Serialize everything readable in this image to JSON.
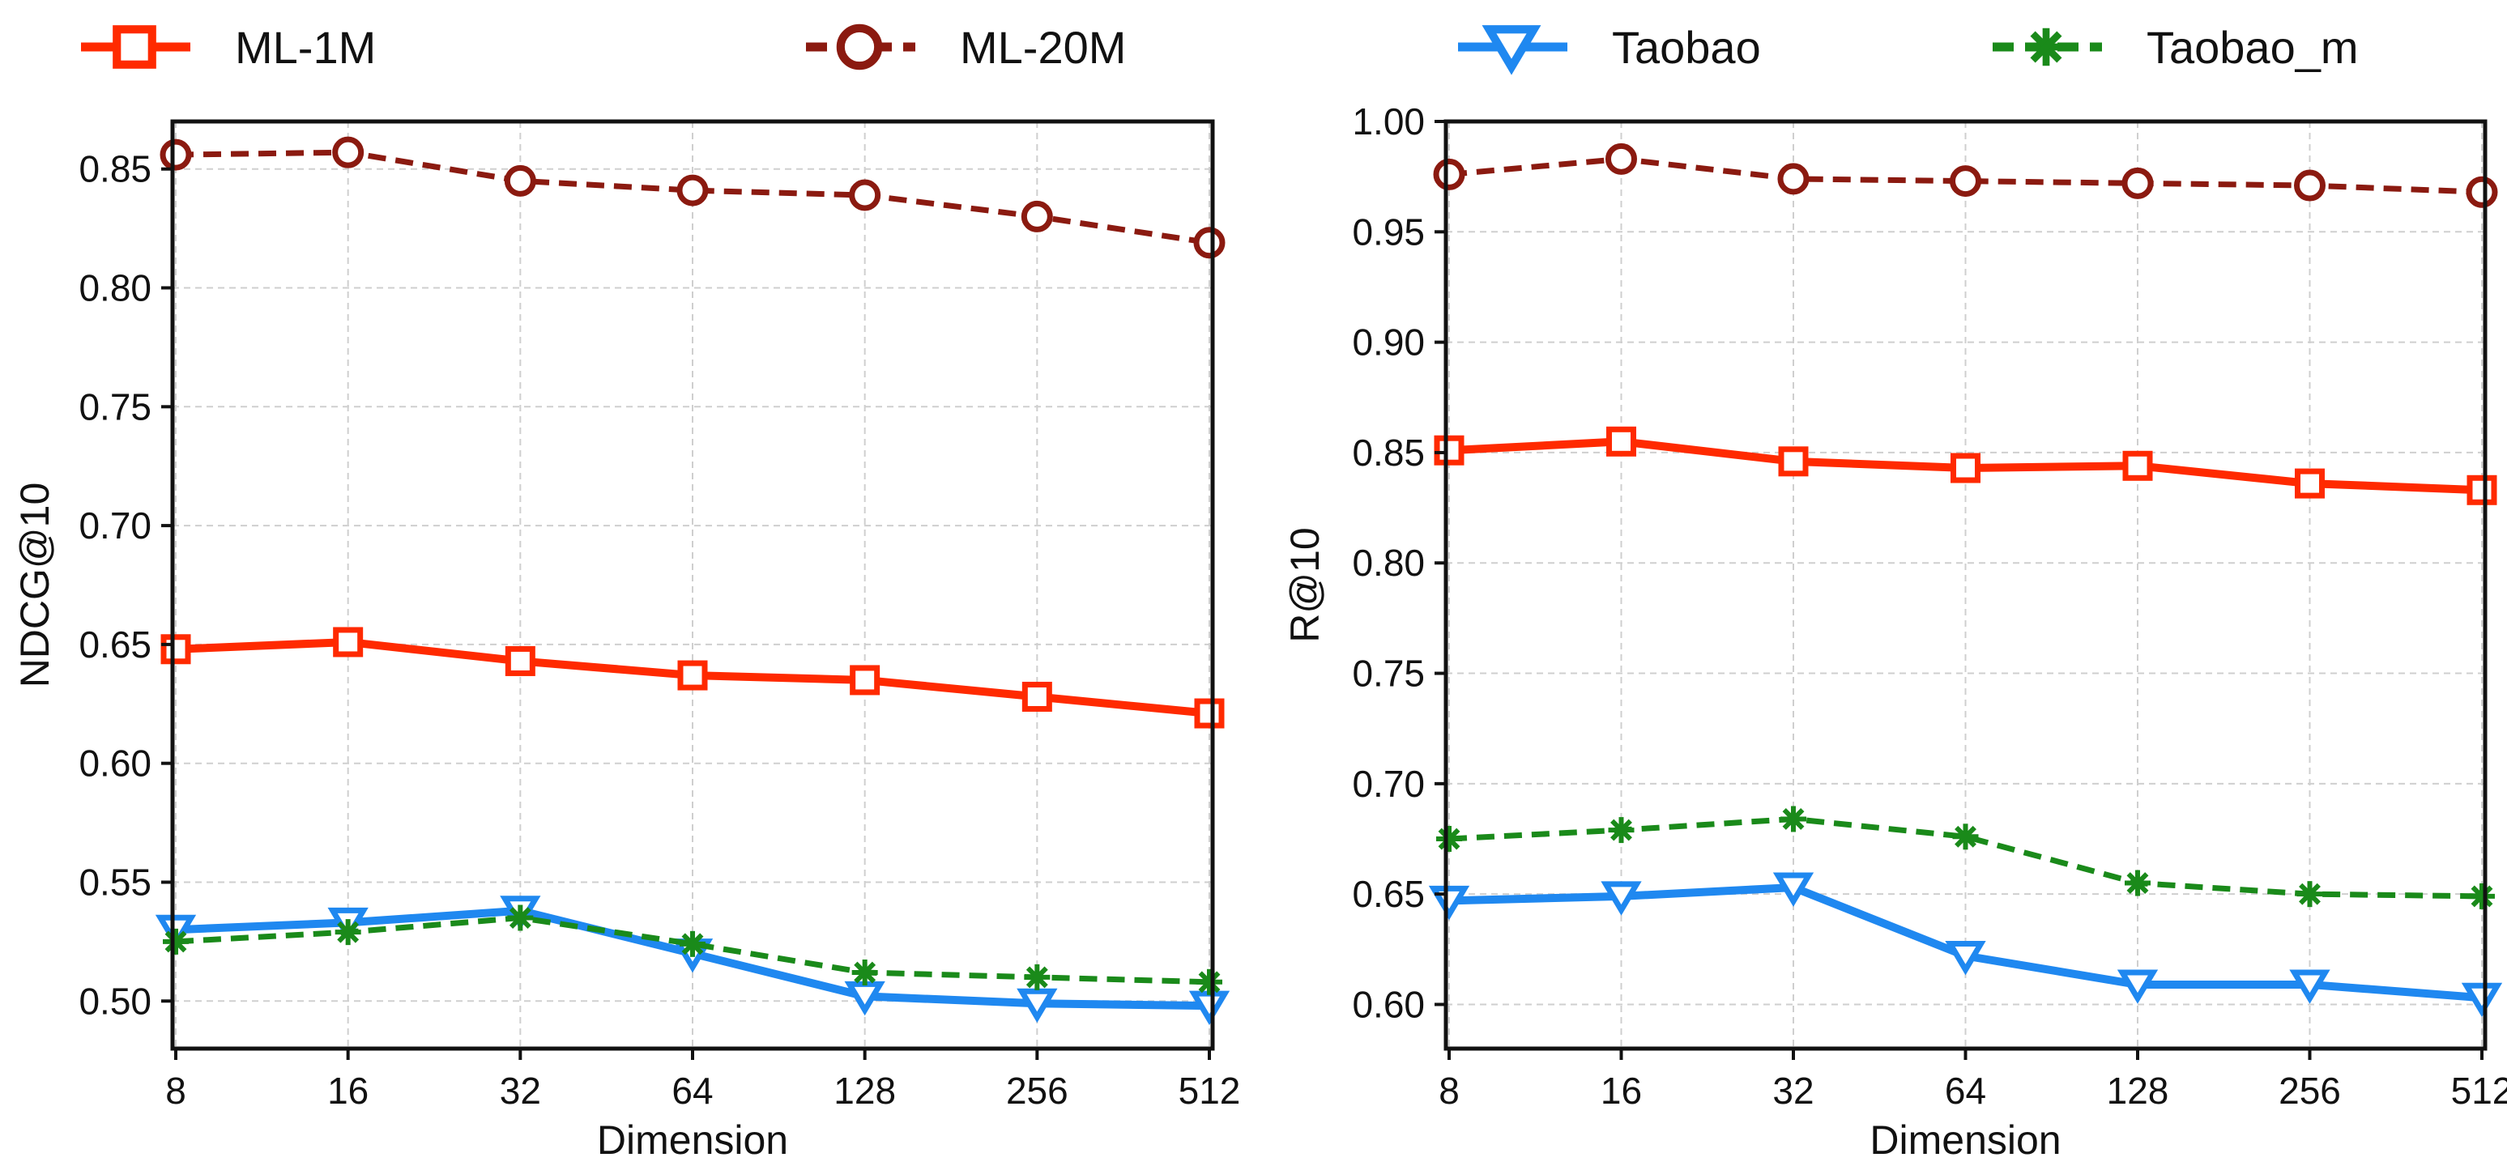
{
  "colors": {
    "ml1m": "#ff2a00",
    "ml20m": "#8b1a10",
    "taobao": "#1f88f0",
    "taobao_m": "#1a8a1a",
    "grid": "#cfcfcf",
    "axis": "#111111"
  },
  "legend": [
    {
      "key": "ml1m",
      "label": "ML-1M",
      "marker": "square",
      "dash": "solid"
    },
    {
      "key": "ml20m",
      "label": "ML-20M",
      "marker": "circle",
      "dash": "dashed"
    },
    {
      "key": "taobao",
      "label": "Taobao",
      "marker": "triangle-down",
      "dash": "solid"
    },
    {
      "key": "taobao_m",
      "label": "Taobao_m",
      "marker": "asterisk",
      "dash": "dashed"
    }
  ],
  "chart_data": [
    {
      "type": "line",
      "title": "",
      "xlabel": "Dimension",
      "ylabel": "NDCG@10",
      "categories": [
        "8",
        "16",
        "32",
        "64",
        "128",
        "256",
        "512"
      ],
      "ylim": [
        0.48,
        0.87
      ],
      "yticks": [
        "0.50",
        "0.55",
        "0.60",
        "0.65",
        "0.70",
        "0.75",
        "0.80",
        "0.85"
      ],
      "grid": true,
      "series": [
        {
          "key": "ml1m",
          "name": "ML-1M",
          "values": [
            0.648,
            0.651,
            0.643,
            0.637,
            0.635,
            0.628,
            0.621
          ]
        },
        {
          "key": "ml20m",
          "name": "ML-20M",
          "values": [
            0.856,
            0.857,
            0.845,
            0.841,
            0.839,
            0.83,
            0.819
          ]
        },
        {
          "key": "taobao",
          "name": "Taobao",
          "values": [
            0.53,
            0.533,
            0.538,
            0.52,
            0.502,
            0.499,
            0.498
          ]
        },
        {
          "key": "taobao_m",
          "name": "Taobao_m",
          "values": [
            0.525,
            0.529,
            0.535,
            0.524,
            0.512,
            0.51,
            0.508
          ]
        }
      ]
    },
    {
      "type": "line",
      "title": "",
      "xlabel": "Dimension",
      "ylabel": "R@10",
      "categories": [
        "8",
        "16",
        "32",
        "64",
        "128",
        "256",
        "512"
      ],
      "ylim": [
        0.58,
        1.0
      ],
      "yticks": [
        "0.60",
        "0.65",
        "0.70",
        "0.75",
        "0.80",
        "0.85",
        "0.90",
        "0.95",
        "1.00"
      ],
      "grid": true,
      "series": [
        {
          "key": "ml1m",
          "name": "ML-1M",
          "values": [
            0.851,
            0.855,
            0.846,
            0.843,
            0.844,
            0.836,
            0.833
          ]
        },
        {
          "key": "ml20m",
          "name": "ML-20M",
          "values": [
            0.976,
            0.983,
            0.974,
            0.973,
            0.972,
            0.971,
            0.968
          ]
        },
        {
          "key": "taobao",
          "name": "Taobao",
          "values": [
            0.647,
            0.649,
            0.653,
            0.622,
            0.609,
            0.609,
            0.603
          ]
        },
        {
          "key": "taobao_m",
          "name": "Taobao_m",
          "values": [
            0.675,
            0.679,
            0.684,
            0.676,
            0.655,
            0.65,
            0.649
          ]
        }
      ]
    }
  ]
}
